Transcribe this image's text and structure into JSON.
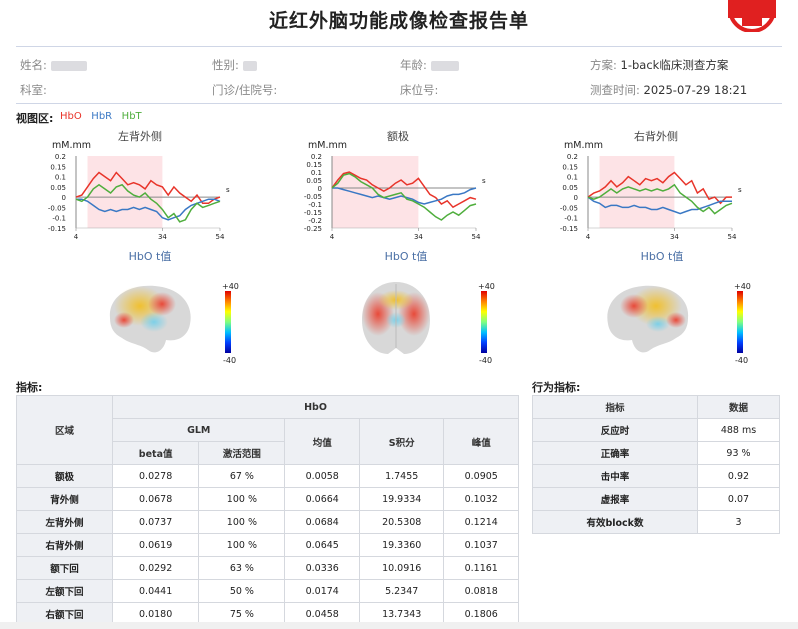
{
  "header": {
    "title": "近红外脑功能成像检查报告单"
  },
  "patient": {
    "name_label": "姓名:",
    "gender_label": "性别:",
    "age_label": "年龄:",
    "plan_label": "方案:",
    "plan_value": "1-back临床测查方案",
    "dept_label": "科室:",
    "id_label": "门诊/住院号:",
    "bed_label": "床位号:",
    "time_label": "测查时间:",
    "time_value": "2025-07-29 18:21"
  },
  "view": {
    "label": "视图区:",
    "legend": {
      "hbo": "HbO",
      "hbr": "HbR",
      "hbt": "HbT"
    }
  },
  "colors": {
    "hbo": "#e8342a",
    "hbr": "#3a78c4",
    "hbt": "#4fae3d",
    "shade": "#fde3e6"
  },
  "charts": [
    {
      "title": "左背外侧",
      "unit": "mM.mm",
      "s": "s",
      "tval": "HbO t值"
    },
    {
      "title": "额极",
      "unit": "mM.mm",
      "s": "s",
      "tval": "HbO t值"
    },
    {
      "title": "右背外侧",
      "unit": "mM.mm",
      "s": "s",
      "tval": "HbO t值"
    }
  ],
  "colorbar": {
    "top": "+40",
    "bottom": "-40"
  },
  "chart_data": [
    {
      "type": "line",
      "x": [
        4,
        6,
        8,
        10,
        12,
        14,
        16,
        18,
        20,
        22,
        24,
        26,
        28,
        30,
        32,
        34,
        36,
        38,
        40,
        42,
        44,
        46,
        48,
        50,
        52,
        54
      ],
      "xticks": [
        4,
        34,
        54
      ],
      "yticks": [
        0.2,
        0.15,
        0.1,
        0.05,
        0,
        -0.05,
        -0.1,
        -0.15
      ],
      "ylim": [
        -0.15,
        0.2
      ],
      "shade": [
        8,
        34
      ],
      "series": [
        {
          "name": "HbO",
          "values": [
            0,
            0.01,
            0.05,
            0.09,
            0.12,
            0.1,
            0.08,
            0.12,
            0.09,
            0.06,
            0.07,
            0.06,
            0.04,
            0.08,
            0.06,
            0.05,
            0.01,
            0.05,
            0.02,
            0.0,
            -0.02,
            0.01,
            -0.03,
            -0.03,
            -0.01,
            0.0
          ]
        },
        {
          "name": "HbR",
          "values": [
            -0.01,
            -0.01,
            -0.02,
            -0.04,
            -0.06,
            -0.07,
            -0.06,
            -0.07,
            -0.06,
            -0.06,
            -0.05,
            -0.06,
            -0.05,
            -0.06,
            -0.07,
            -0.1,
            -0.11,
            -0.1,
            -0.09,
            -0.06,
            -0.04,
            -0.03,
            -0.02,
            -0.01,
            -0.01,
            -0.02
          ]
        },
        {
          "name": "HbT",
          "values": [
            -0.01,
            -0.02,
            0.0,
            0.04,
            0.06,
            0.04,
            0.02,
            0.05,
            0.06,
            0.03,
            0.01,
            0.0,
            0.02,
            -0.01,
            -0.03,
            -0.06,
            -0.1,
            -0.08,
            -0.12,
            -0.11,
            -0.06,
            -0.03,
            -0.05,
            -0.04,
            -0.03,
            -0.02
          ]
        }
      ]
    },
    {
      "type": "line",
      "x": [
        4,
        6,
        8,
        10,
        12,
        14,
        16,
        18,
        20,
        22,
        24,
        26,
        28,
        30,
        32,
        34,
        36,
        38,
        40,
        42,
        44,
        46,
        48,
        50,
        52,
        54
      ],
      "xticks": [
        4,
        34,
        54
      ],
      "yticks": [
        0.2,
        0.15,
        0.1,
        0.05,
        0,
        -0.05,
        -0.1,
        -0.15,
        -0.2,
        -0.25
      ],
      "ylim": [
        -0.25,
        0.2
      ],
      "shade": [
        4,
        34
      ],
      "series": [
        {
          "name": "HbO",
          "values": [
            0,
            0.05,
            0.09,
            0.1,
            0.08,
            0.06,
            0.05,
            0.02,
            0.0,
            -0.02,
            0.0,
            0.03,
            0.05,
            0.02,
            0.03,
            0.06,
            0.01,
            -0.04,
            -0.06,
            -0.1,
            -0.08,
            -0.12,
            -0.1,
            -0.08,
            -0.06,
            -0.07
          ]
        },
        {
          "name": "HbR",
          "values": [
            0,
            0.0,
            -0.01,
            -0.02,
            -0.03,
            -0.04,
            -0.05,
            -0.06,
            -0.05,
            -0.06,
            -0.07,
            -0.06,
            -0.05,
            -0.06,
            -0.07,
            -0.09,
            -0.1,
            -0.09,
            -0.08,
            -0.07,
            -0.05,
            -0.04,
            -0.04,
            -0.03,
            -0.01,
            0.0
          ]
        },
        {
          "name": "HbT",
          "values": [
            0,
            0.03,
            0.08,
            0.09,
            0.07,
            0.04,
            0.02,
            0.0,
            -0.04,
            -0.06,
            -0.05,
            -0.04,
            -0.03,
            -0.07,
            -0.08,
            -0.1,
            -0.12,
            -0.15,
            -0.18,
            -0.2,
            -0.17,
            -0.15,
            -0.17,
            -0.14,
            -0.11,
            -0.1
          ]
        }
      ]
    },
    {
      "type": "line",
      "x": [
        4,
        6,
        8,
        10,
        12,
        14,
        16,
        18,
        20,
        22,
        24,
        26,
        28,
        30,
        32,
        34,
        36,
        38,
        40,
        42,
        44,
        46,
        48,
        50,
        52,
        54
      ],
      "xticks": [
        4,
        34,
        54
      ],
      "yticks": [
        0.2,
        0.15,
        0.1,
        0.05,
        0,
        -0.05,
        -0.1,
        -0.15
      ],
      "ylim": [
        -0.15,
        0.2
      ],
      "shade": [
        8,
        34
      ],
      "series": [
        {
          "name": "HbO",
          "values": [
            0,
            0.02,
            0.03,
            0.05,
            0.08,
            0.05,
            0.07,
            0.1,
            0.08,
            0.06,
            0.09,
            0.08,
            0.09,
            0.07,
            0.1,
            0.12,
            0.09,
            0.06,
            0.08,
            0.02,
            0.04,
            -0.01,
            0.0,
            -0.03,
            0.0,
            0.0
          ]
        },
        {
          "name": "HbR",
          "values": [
            0,
            -0.02,
            -0.03,
            -0.05,
            -0.04,
            -0.04,
            -0.05,
            -0.05,
            -0.04,
            -0.05,
            -0.05,
            -0.06,
            -0.06,
            -0.05,
            -0.06,
            -0.07,
            -0.08,
            -0.07,
            -0.06,
            -0.06,
            -0.05,
            -0.04,
            -0.03,
            -0.02,
            -0.02,
            -0.02
          ]
        },
        {
          "name": "HbT",
          "values": [
            0,
            -0.01,
            0.0,
            0.02,
            0.04,
            0.02,
            0.04,
            0.05,
            0.04,
            0.03,
            0.04,
            0.03,
            0.04,
            0.03,
            0.04,
            0.06,
            0.02,
            0.0,
            -0.02,
            -0.05,
            -0.07,
            -0.05,
            -0.08,
            -0.06,
            -0.04,
            -0.03
          ]
        }
      ]
    }
  ],
  "indices": {
    "label": "指标:",
    "header": {
      "region": "区域",
      "hbo": "HbO",
      "glm": "GLM",
      "beta": "beta值",
      "range": "激活范围",
      "mean": "均值",
      "s": "S积分",
      "peak": "峰值"
    },
    "rows": [
      {
        "region": "额极",
        "beta": "0.0278",
        "range": "67 %",
        "mean": "0.0058",
        "s": "1.7455",
        "peak": "0.0905"
      },
      {
        "region": "背外侧",
        "beta": "0.0678",
        "range": "100 %",
        "mean": "0.0664",
        "s": "19.9334",
        "peak": "0.1032"
      },
      {
        "region": "左背外侧",
        "beta": "0.0737",
        "range": "100 %",
        "mean": "0.0684",
        "s": "20.5308",
        "peak": "0.1214"
      },
      {
        "region": "右背外侧",
        "beta": "0.0619",
        "range": "100 %",
        "mean": "0.0645",
        "s": "19.3360",
        "peak": "0.1037"
      },
      {
        "region": "额下回",
        "beta": "0.0292",
        "range": "63 %",
        "mean": "0.0336",
        "s": "10.0916",
        "peak": "0.1161"
      },
      {
        "region": "左额下回",
        "beta": "0.0441",
        "range": "50 %",
        "mean": "0.0174",
        "s": "5.2347",
        "peak": "0.0818"
      },
      {
        "region": "右额下回",
        "beta": "0.0180",
        "range": "75 %",
        "mean": "0.0458",
        "s": "13.7343",
        "peak": "0.1806"
      }
    ]
  },
  "behavior": {
    "label": "行为指标:",
    "header": {
      "index": "指标",
      "data": "数据"
    },
    "rows": [
      {
        "name": "反应时",
        "value": "488 ms"
      },
      {
        "name": "正确率",
        "value": "93 %"
      },
      {
        "name": "击中率",
        "value": "0.92"
      },
      {
        "name": "虚报率",
        "value": "0.07"
      },
      {
        "name": "有效block数",
        "value": "3"
      }
    ]
  }
}
